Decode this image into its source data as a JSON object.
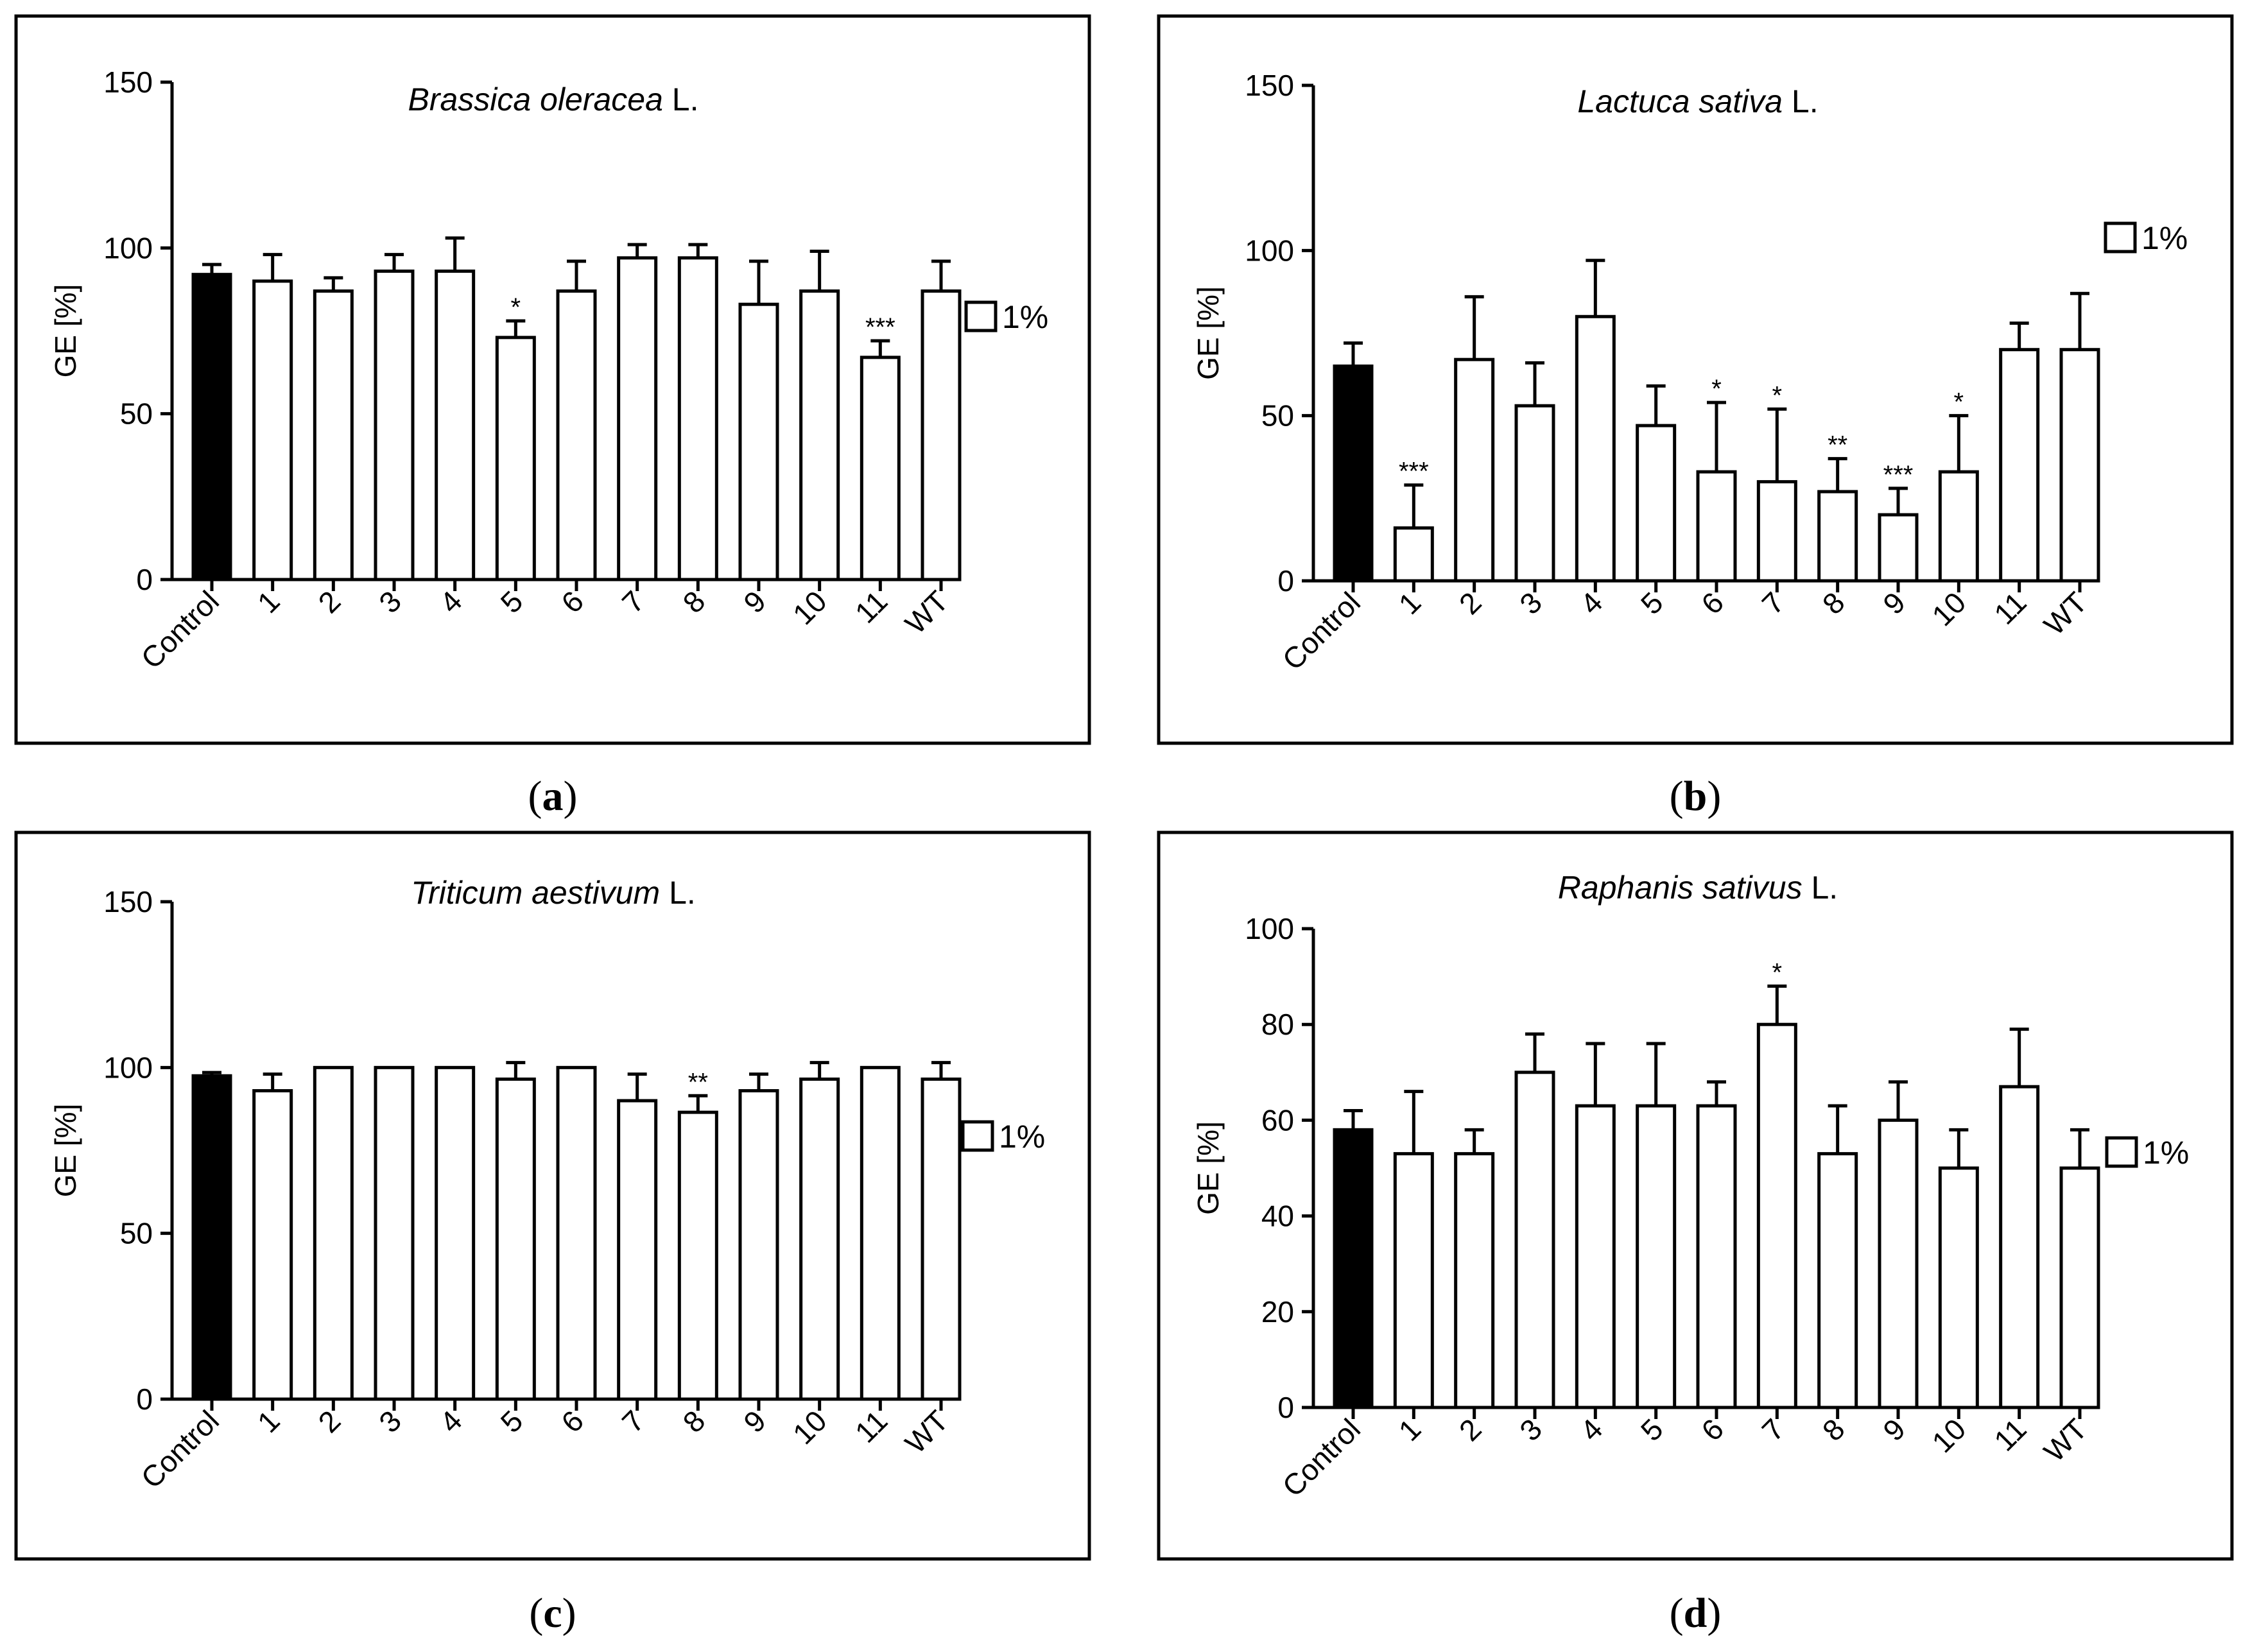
{
  "chart_data": [
    {
      "type": "bar",
      "title": {
        "italic": "Brassica oleracea",
        "plain": " L."
      },
      "ylabel": "GE [%]",
      "ylim": [
        0,
        150
      ],
      "yticks": [
        "0",
        "50",
        "100",
        "150"
      ],
      "legend": "1%",
      "caption": "a",
      "categories": [
        "Control",
        "1",
        "2",
        "3",
        "4",
        "5",
        "6",
        "7",
        "8",
        "9",
        "10",
        "11",
        "WT"
      ],
      "values": [
        92,
        90,
        87,
        93,
        93,
        73,
        87,
        97,
        97,
        83,
        87,
        67,
        87
      ],
      "errors": [
        3,
        8,
        4,
        5,
        10,
        5,
        9,
        4,
        4,
        13,
        12,
        5,
        9
      ],
      "significance": [
        "",
        "",
        "",
        "",
        "",
        "*",
        "",
        "",
        "",
        "",
        "",
        "***",
        ""
      ],
      "fills": [
        "#000000",
        "#ffffff",
        "#ffffff",
        "#ffffff",
        "#ffffff",
        "#ffffff",
        "#ffffff",
        "#ffffff",
        "#ffffff",
        "#ffffff",
        "#ffffff",
        "#ffffff",
        "#ffffff"
      ]
    },
    {
      "type": "bar",
      "title": {
        "italic": "Lactuca sativa",
        "plain": " L."
      },
      "ylabel": "GE [%]",
      "ylim": [
        0,
        150
      ],
      "yticks": [
        "0",
        "50",
        "100",
        "150"
      ],
      "legend": "1%",
      "caption": "b",
      "categories": [
        "Control",
        "1",
        "2",
        "3",
        "4",
        "5",
        "6",
        "7",
        "8",
        "9",
        "10",
        "11",
        "WT"
      ],
      "values": [
        65,
        16,
        67,
        53,
        80,
        47,
        33,
        30,
        27,
        20,
        33,
        70,
        70
      ],
      "errors": [
        7,
        13,
        19,
        13,
        17,
        12,
        21,
        22,
        10,
        8,
        17,
        8,
        17
      ],
      "significance": [
        "",
        "***",
        "",
        "",
        "",
        "",
        "*",
        "*",
        "**",
        "***",
        "*",
        "",
        ""
      ],
      "fills": [
        "#000000",
        "#ffffff",
        "#ffffff",
        "#ffffff",
        "#ffffff",
        "#ffffff",
        "#ffffff",
        "#ffffff",
        "#ffffff",
        "#ffffff",
        "#ffffff",
        "#ffffff",
        "#ffffff"
      ]
    },
    {
      "type": "bar",
      "title": {
        "italic": "Triticum aestivum",
        "plain": " L."
      },
      "ylabel": "GE [%]",
      "ylim": [
        0,
        150
      ],
      "yticks": [
        "0",
        "50",
        "100",
        "150"
      ],
      "legend": "1%",
      "caption": "c",
      "categories": [
        "Control",
        "1",
        "2",
        "3",
        "4",
        "5",
        "6",
        "7",
        "8",
        "9",
        "10",
        "11",
        "WT"
      ],
      "values": [
        97.5,
        93,
        100,
        100,
        100,
        96.5,
        100,
        90,
        86.5,
        93,
        96.5,
        100,
        96.5
      ],
      "errors": [
        1,
        5,
        0,
        0,
        0,
        5,
        0,
        8,
        5,
        5,
        5,
        0,
        5
      ],
      "significance": [
        "",
        "",
        "",
        "",
        "",
        "",
        "",
        "",
        "**",
        "",
        "",
        "",
        ""
      ],
      "fills": [
        "#000000",
        "#ffffff",
        "#ffffff",
        "#ffffff",
        "#ffffff",
        "#ffffff",
        "#ffffff",
        "#ffffff",
        "#ffffff",
        "#ffffff",
        "#ffffff",
        "#ffffff",
        "#ffffff"
      ]
    },
    {
      "type": "bar",
      "title": {
        "italic": "Raphanis sativus",
        "plain": " L."
      },
      "ylabel": "GE [%]",
      "ylim": [
        0,
        100
      ],
      "yticks": [
        "0",
        "20",
        "40",
        "60",
        "80",
        "100"
      ],
      "legend": "1%",
      "caption": "d",
      "categories": [
        "Control",
        "1",
        "2",
        "3",
        "4",
        "5",
        "6",
        "7",
        "8",
        "9",
        "10",
        "11",
        "WT"
      ],
      "values": [
        58,
        53,
        53,
        70,
        63,
        63,
        63,
        80,
        53,
        60,
        50,
        67,
        50
      ],
      "errors": [
        4,
        13,
        5,
        8,
        13,
        13,
        5,
        8,
        10,
        8,
        8,
        12,
        8
      ],
      "significance": [
        "",
        "",
        "",
        "",
        "",
        "",
        "",
        "*",
        "",
        "",
        "",
        "",
        ""
      ],
      "fills": [
        "#000000",
        "#ffffff",
        "#ffffff",
        "#ffffff",
        "#ffffff",
        "#ffffff",
        "#ffffff",
        "#ffffff",
        "#ffffff",
        "#ffffff",
        "#ffffff",
        "#ffffff",
        "#ffffff"
      ]
    }
  ]
}
